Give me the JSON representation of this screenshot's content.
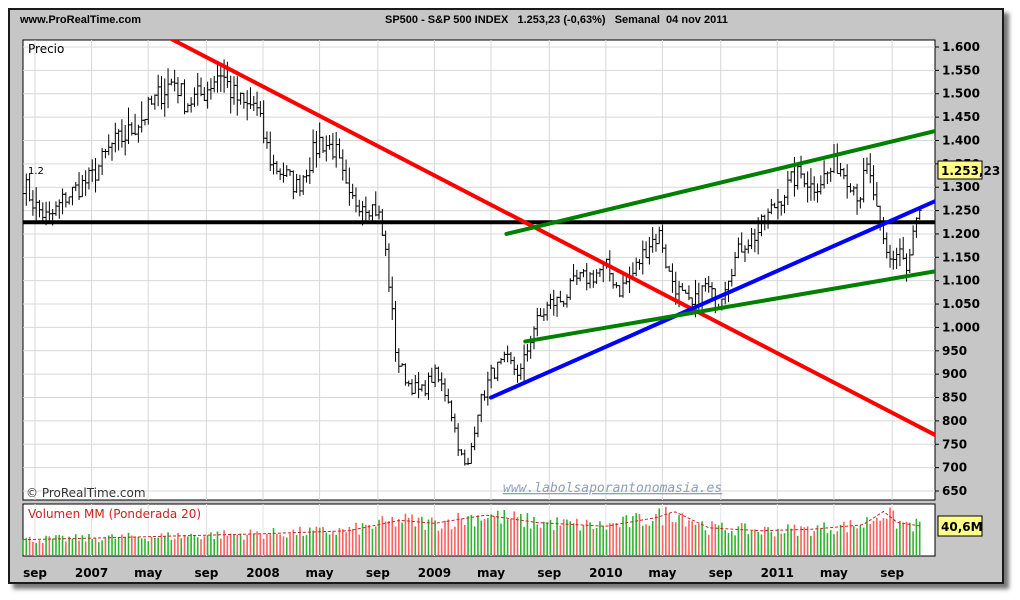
{
  "header": {
    "site": "www.ProRealTime.com",
    "instrument_line": "SP500 - S&P 500 INDEX   1.253,23 (-0,63%)   Semanal  04 nov 2011"
  },
  "price_panel": {
    "label": "Precio",
    "copyright": "© ProRealTime.com",
    "watermark": "www.labolsaporantonomasia.es",
    "last_price_label": "1.253,23",
    "horizontal_level_label": "1.2"
  },
  "volume_panel": {
    "label": "Volumen MM (Ponderada 20)",
    "last_value_label": "40,6M"
  },
  "colors": {
    "frame": "#c6c6c6",
    "candle": "#000000",
    "red_trendline": "#ff0000",
    "blue_trendline": "#0000ff",
    "green_channel": "#008000",
    "support": "#000000",
    "volume_up": "#2db32d",
    "volume_down": "#ff5f5f",
    "label_badge": "#ffff88"
  },
  "chart_data": {
    "type": "line",
    "title": "SP500 - S&P 500 INDEX",
    "series_kind": "weekly OHLC bars",
    "ylim": [
      650,
      1600
    ],
    "y_ticks": [
      650,
      700,
      750,
      800,
      850,
      900,
      950,
      1000,
      1050,
      1100,
      1150,
      1200,
      1250,
      1300,
      1350,
      1400,
      1450,
      1500,
      1550,
      1600
    ],
    "y_tick_labels": [
      "650",
      "700",
      "750",
      "800",
      "850",
      "900",
      "950",
      "1.000",
      "1.050",
      "1.100",
      "1.150",
      "1.200",
      "1.250",
      "1.300",
      "1.350",
      "1.400",
      "1.450",
      "1.500",
      "1.550",
      "1.600"
    ],
    "x_range": [
      2006.6,
      2011.92
    ],
    "x_ticks": [
      {
        "t": 2006.67,
        "label": "sep"
      },
      {
        "t": 2007.0,
        "label": "2007"
      },
      {
        "t": 2007.33,
        "label": "may"
      },
      {
        "t": 2007.67,
        "label": "sep"
      },
      {
        "t": 2008.0,
        "label": "2008"
      },
      {
        "t": 2008.33,
        "label": "may"
      },
      {
        "t": 2008.67,
        "label": "sep"
      },
      {
        "t": 2009.0,
        "label": "2009"
      },
      {
        "t": 2009.33,
        "label": "may"
      },
      {
        "t": 2009.67,
        "label": "sep"
      },
      {
        "t": 2010.0,
        "label": "2010"
      },
      {
        "t": 2010.33,
        "label": "may"
      },
      {
        "t": 2010.67,
        "label": "sep"
      },
      {
        "t": 2011.0,
        "label": "2011"
      },
      {
        "t": 2011.33,
        "label": "may"
      },
      {
        "t": 2011.67,
        "label": "sep"
      }
    ],
    "price_anchors": [
      [
        2006.6,
        1310
      ],
      [
        2006.67,
        1260
      ],
      [
        2006.75,
        1230
      ],
      [
        2006.85,
        1280
      ],
      [
        2007.0,
        1320
      ],
      [
        2007.12,
        1390
      ],
      [
        2007.2,
        1410
      ],
      [
        2007.3,
        1450
      ],
      [
        2007.4,
        1500
      ],
      [
        2007.48,
        1530
      ],
      [
        2007.55,
        1480
      ],
      [
        2007.65,
        1500
      ],
      [
        2007.75,
        1550
      ],
      [
        2007.82,
        1500
      ],
      [
        2007.9,
        1470
      ],
      [
        2007.95,
        1480
      ],
      [
        2008.05,
        1350
      ],
      [
        2008.12,
        1330
      ],
      [
        2008.2,
        1300
      ],
      [
        2008.33,
        1400
      ],
      [
        2008.42,
        1380
      ],
      [
        2008.5,
        1270
      ],
      [
        2008.58,
        1270
      ],
      [
        2008.67,
        1250
      ],
      [
        2008.72,
        1150
      ],
      [
        2008.78,
        930
      ],
      [
        2008.85,
        880
      ],
      [
        2008.92,
        860
      ],
      [
        2009.0,
        900
      ],
      [
        2009.08,
        850
      ],
      [
        2009.15,
        730
      ],
      [
        2009.19,
        690
      ],
      [
        2009.25,
        820
      ],
      [
        2009.33,
        900
      ],
      [
        2009.42,
        930
      ],
      [
        2009.5,
        900
      ],
      [
        2009.58,
        1000
      ],
      [
        2009.67,
        1050
      ],
      [
        2009.75,
        1060
      ],
      [
        2009.83,
        1100
      ],
      [
        2009.92,
        1110
      ],
      [
        2010.0,
        1130
      ],
      [
        2010.08,
        1080
      ],
      [
        2010.15,
        1110
      ],
      [
        2010.25,
        1180
      ],
      [
        2010.32,
        1200
      ],
      [
        2010.36,
        1120
      ],
      [
        2010.42,
        1080
      ],
      [
        2010.5,
        1040
      ],
      [
        2010.58,
        1090
      ],
      [
        2010.65,
        1050
      ],
      [
        2010.72,
        1120
      ],
      [
        2010.8,
        1180
      ],
      [
        2010.88,
        1200
      ],
      [
        2011.0,
        1270
      ],
      [
        2011.1,
        1320
      ],
      [
        2011.15,
        1330
      ],
      [
        2011.2,
        1300
      ],
      [
        2011.3,
        1330
      ],
      [
        2011.35,
        1350
      ],
      [
        2011.42,
        1320
      ],
      [
        2011.48,
        1280
      ],
      [
        2011.52,
        1340
      ],
      [
        2011.56,
        1290
      ],
      [
        2011.6,
        1200
      ],
      [
        2011.65,
        1140
      ],
      [
        2011.72,
        1170
      ],
      [
        2011.76,
        1110
      ],
      [
        2011.8,
        1220
      ],
      [
        2011.85,
        1253
      ]
    ],
    "last_close": 1253.23,
    "horizontal_level": 1225,
    "trendlines": [
      {
        "name": "red",
        "from": [
          2007.45,
          1620
        ],
        "to": [
          2011.92,
          770
        ]
      },
      {
        "name": "blue",
        "from": [
          2009.33,
          850
        ],
        "to": [
          2011.92,
          1270
        ]
      },
      {
        "name": "green_upper",
        "from": [
          2009.42,
          1200
        ],
        "to": [
          2011.92,
          1420
        ]
      },
      {
        "name": "green_lower",
        "from": [
          2009.53,
          970
        ],
        "to": [
          2011.92,
          1120
        ]
      }
    ],
    "volume": {
      "label": "Volumen MM (Ponderada 20)",
      "last_value": 40.6,
      "unit": "M",
      "profile": [
        [
          2006.6,
          22
        ],
        [
          2007.0,
          24
        ],
        [
          2007.5,
          27
        ],
        [
          2008.0,
          30
        ],
        [
          2008.5,
          34
        ],
        [
          2008.8,
          48
        ],
        [
          2009.0,
          44
        ],
        [
          2009.3,
          55
        ],
        [
          2009.6,
          45
        ],
        [
          2010.0,
          40
        ],
        [
          2010.3,
          52
        ],
        [
          2010.4,
          60
        ],
        [
          2010.6,
          38
        ],
        [
          2010.9,
          34
        ],
        [
          2011.2,
          36
        ],
        [
          2011.5,
          42
        ],
        [
          2011.62,
          60
        ],
        [
          2011.7,
          45
        ],
        [
          2011.85,
          40
        ]
      ]
    }
  }
}
